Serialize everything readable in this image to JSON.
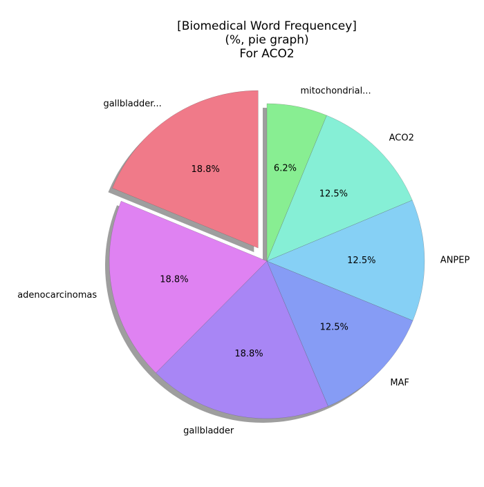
{
  "chart_data": {
    "type": "pie",
    "title_lines": [
      "[Biomedical Word Frequencey]",
      "(%, pie graph)",
      "For ACO2"
    ],
    "slices": [
      {
        "label": "mitochondrial...",
        "value": 6.2,
        "pct_label": "6.2%",
        "color": "#88EE92",
        "explode": false
      },
      {
        "label": "ACO2",
        "value": 12.5,
        "pct_label": "12.5%",
        "color": "#86EFD6",
        "explode": false
      },
      {
        "label": "ANPEP",
        "value": 12.5,
        "pct_label": "12.5%",
        "color": "#86D0F5",
        "explode": false
      },
      {
        "label": "MAF",
        "value": 12.5,
        "pct_label": "12.5%",
        "color": "#869CF5",
        "explode": false
      },
      {
        "label": "gallbladder",
        "value": 18.8,
        "pct_label": "18.8%",
        "color": "#A886F5",
        "explode": false
      },
      {
        "label": "adenocarcinomas",
        "value": 18.8,
        "pct_label": "18.8%",
        "color": "#DF82F2",
        "explode": false
      },
      {
        "label": "gallbladder...",
        "value": 18.8,
        "pct_label": "18.8%",
        "color": "#F07A89",
        "explode": true
      }
    ],
    "start_angle_deg": 90,
    "direction": "clockwise",
    "shadow": true
  }
}
